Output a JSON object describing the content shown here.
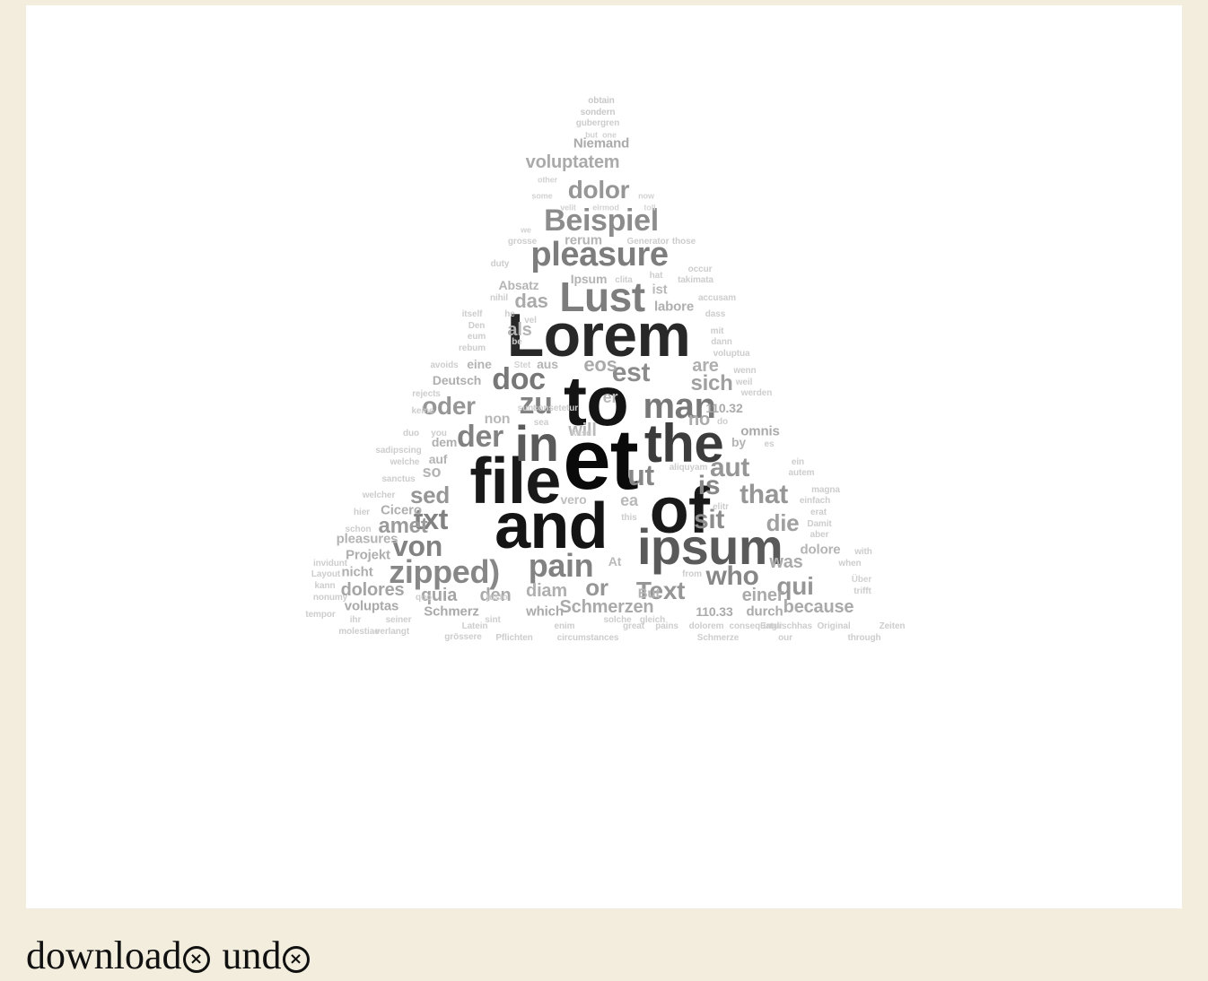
{
  "word_cloud": {
    "words": [
      {
        "text": "et",
        "size": 96,
        "tone": 10
      },
      {
        "text": "to",
        "size": 78,
        "tone": 20
      },
      {
        "text": "file",
        "size": 72,
        "tone": 25
      },
      {
        "text": "and",
        "size": 72,
        "tone": 20
      },
      {
        "text": "of",
        "size": 72,
        "tone": 25
      },
      {
        "text": "Lorem",
        "size": 68,
        "tone": 40
      },
      {
        "text": "the",
        "size": 60,
        "tone": 60
      },
      {
        "text": "in",
        "size": 56,
        "tone": 90
      },
      {
        "text": "ipsum",
        "size": 56,
        "tone": 90
      },
      {
        "text": "Lust",
        "size": 46,
        "tone": 125
      },
      {
        "text": "man",
        "size": 40,
        "tone": 120
      },
      {
        "text": "pleasure",
        "size": 38,
        "tone": 125
      },
      {
        "text": "zipped)",
        "size": 36,
        "tone": 135
      },
      {
        "text": "pain",
        "size": 36,
        "tone": 130
      },
      {
        "text": "Beispiel",
        "size": 34,
        "tone": 140
      },
      {
        "text": "doc",
        "size": 34,
        "tone": 120
      },
      {
        "text": "zu",
        "size": 34,
        "tone": 130
      },
      {
        "text": "der",
        "size": 34,
        "tone": 130
      },
      {
        "text": "ut",
        "size": 32,
        "tone": 135
      },
      {
        "text": "txt",
        "size": 32,
        "tone": 130
      },
      {
        "text": "von",
        "size": 32,
        "tone": 130
      },
      {
        "text": "est",
        "size": 30,
        "tone": 140
      },
      {
        "text": "who",
        "size": 30,
        "tone": 135
      },
      {
        "text": "aut",
        "size": 30,
        "tone": 150
      },
      {
        "text": "is",
        "size": 30,
        "tone": 135
      },
      {
        "text": "that",
        "size": 30,
        "tone": 150
      },
      {
        "text": "sit",
        "size": 30,
        "tone": 140
      },
      {
        "text": "oder",
        "size": 28,
        "tone": 150
      },
      {
        "text": "dolor",
        "size": 28,
        "tone": 150
      },
      {
        "text": "Text",
        "size": 28,
        "tone": 150
      },
      {
        "text": "qui",
        "size": 28,
        "tone": 150
      },
      {
        "text": "sed",
        "size": 26,
        "tone": 150
      },
      {
        "text": "die",
        "size": 26,
        "tone": 160
      },
      {
        "text": "or",
        "size": 26,
        "tone": 150
      },
      {
        "text": "amet",
        "size": 24,
        "tone": 155
      },
      {
        "text": "sich",
        "size": 24,
        "tone": 160
      },
      {
        "text": "das",
        "size": 22,
        "tone": 170
      },
      {
        "text": "eos",
        "size": 22,
        "tone": 170
      },
      {
        "text": "quia",
        "size": 20,
        "tone": 165
      },
      {
        "text": "den",
        "size": 20,
        "tone": 170
      },
      {
        "text": "diam",
        "size": 20,
        "tone": 175
      },
      {
        "text": "will",
        "size": 20,
        "tone": 185
      },
      {
        "text": "Schmerzen",
        "size": 20,
        "tone": 170
      },
      {
        "text": "voluptatem",
        "size": 20,
        "tone": 170
      },
      {
        "text": "are",
        "size": 20,
        "tone": 175
      },
      {
        "text": "dolores",
        "size": 20,
        "tone": 165
      },
      {
        "text": "because",
        "size": 20,
        "tone": 170
      },
      {
        "text": "als",
        "size": 20,
        "tone": 180
      },
      {
        "text": "no",
        "size": 20,
        "tone": 170
      },
      {
        "text": "was",
        "size": 20,
        "tone": 170
      },
      {
        "text": "einer",
        "size": 20,
        "tone": 170
      },
      {
        "text": "so",
        "size": 18,
        "tone": 180
      },
      {
        "text": "Niemand",
        "size": 15,
        "tone": 170
      },
      {
        "text": "rerum",
        "size": 15,
        "tone": 180
      },
      {
        "text": "Absatz",
        "size": 14,
        "tone": 180
      },
      {
        "text": "Ipsum",
        "size": 14,
        "tone": 180
      },
      {
        "text": "ist",
        "size": 15,
        "tone": 185
      },
      {
        "text": "labore",
        "size": 15,
        "tone": 175
      },
      {
        "text": "Deutsch",
        "size": 14,
        "tone": 175
      },
      {
        "text": "eine",
        "size": 14,
        "tone": 180
      },
      {
        "text": "aus",
        "size": 14,
        "tone": 180
      },
      {
        "text": "110.32",
        "size": 14,
        "tone": 170
      },
      {
        "text": "omnis",
        "size": 15,
        "tone": 170
      },
      {
        "text": "by",
        "size": 14,
        "tone": 180
      },
      {
        "text": "dem",
        "size": 14,
        "tone": 175
      },
      {
        "text": "auf",
        "size": 14,
        "tone": 180
      },
      {
        "text": "non",
        "size": 16,
        "tone": 185
      },
      {
        "text": "ea",
        "size": 18,
        "tone": 185
      },
      {
        "text": "er",
        "size": 18,
        "tone": 185
      },
      {
        "text": "vero",
        "size": 14,
        "tone": 190
      },
      {
        "text": "Cicero",
        "size": 15,
        "tone": 175
      },
      {
        "text": "Projekt",
        "size": 15,
        "tone": 175
      },
      {
        "text": "nicht",
        "size": 15,
        "tone": 175
      },
      {
        "text": "pleasures",
        "size": 15,
        "tone": 180
      },
      {
        "text": "voluptas",
        "size": 15,
        "tone": 170
      },
      {
        "text": "Schmerz",
        "size": 15,
        "tone": 170
      },
      {
        "text": "which",
        "size": 15,
        "tone": 170
      },
      {
        "text": "But",
        "size": 15,
        "tone": 180
      },
      {
        "text": "At",
        "size": 14,
        "tone": 185
      },
      {
        "text": "110.33",
        "size": 14,
        "tone": 170
      },
      {
        "text": "durch",
        "size": 15,
        "tone": 170
      },
      {
        "text": "dolore",
        "size": 15,
        "tone": 180
      },
      {
        "text": "obtain",
        "size": 10,
        "tone": 200
      },
      {
        "text": "sondern",
        "size": 10,
        "tone": 200
      },
      {
        "text": "gubergren",
        "size": 10,
        "tone": 205
      },
      {
        "text": "but",
        "size": 9,
        "tone": 210
      },
      {
        "text": "one",
        "size": 9,
        "tone": 210
      },
      {
        "text": "other",
        "size": 9,
        "tone": 210
      },
      {
        "text": "some",
        "size": 9,
        "tone": 210
      },
      {
        "text": "now",
        "size": 9,
        "tone": 210
      },
      {
        "text": "velit",
        "size": 9,
        "tone": 210
      },
      {
        "text": "eirmod",
        "size": 9,
        "tone": 210
      },
      {
        "text": "toll",
        "size": 9,
        "tone": 215
      },
      {
        "text": "we",
        "size": 9,
        "tone": 210
      },
      {
        "text": "grosse",
        "size": 10,
        "tone": 205
      },
      {
        "text": "Generator",
        "size": 10,
        "tone": 205
      },
      {
        "text": "those",
        "size": 10,
        "tone": 205
      },
      {
        "text": "duty",
        "size": 10,
        "tone": 205
      },
      {
        "text": "occur",
        "size": 10,
        "tone": 205
      },
      {
        "text": "hat",
        "size": 10,
        "tone": 205
      },
      {
        "text": "clita",
        "size": 10,
        "tone": 205
      },
      {
        "text": "takimata",
        "size": 10,
        "tone": 205
      },
      {
        "text": "nihil",
        "size": 10,
        "tone": 205
      },
      {
        "text": "accusam",
        "size": 10,
        "tone": 205
      },
      {
        "text": "itself",
        "size": 10,
        "tone": 205
      },
      {
        "text": "he",
        "size": 10,
        "tone": 205
      },
      {
        "text": "vel",
        "size": 10,
        "tone": 205
      },
      {
        "text": "dass",
        "size": 10,
        "tone": 205
      },
      {
        "text": "Den",
        "size": 10,
        "tone": 205
      },
      {
        "text": "eum",
        "size": 10,
        "tone": 205
      },
      {
        "text": "mit",
        "size": 10,
        "tone": 205
      },
      {
        "text": "dann",
        "size": 10,
        "tone": 205
      },
      {
        "text": "rebum",
        "size": 10,
        "tone": 205
      },
      {
        "text": "be",
        "size": 10,
        "tone": 205
      },
      {
        "text": "voluptua",
        "size": 10,
        "tone": 205
      },
      {
        "text": "avoids",
        "size": 10,
        "tone": 205
      },
      {
        "text": "Stet",
        "size": 10,
        "tone": 210
      },
      {
        "text": "wenn",
        "size": 10,
        "tone": 205
      },
      {
        "text": "weil",
        "size": 10,
        "tone": 205
      },
      {
        "text": "rejects",
        "size": 10,
        "tone": 205
      },
      {
        "text": "werden",
        "size": 10,
        "tone": 205
      },
      {
        "text": "keine",
        "size": 10,
        "tone": 205
      },
      {
        "text": "sunt",
        "size": 10,
        "tone": 205
      },
      {
        "text": "consetetur",
        "size": 10,
        "tone": 205
      },
      {
        "text": "sea",
        "size": 10,
        "tone": 205
      },
      {
        "text": "do",
        "size": 10,
        "tone": 205
      },
      {
        "text": "duo",
        "size": 10,
        "tone": 205
      },
      {
        "text": "you",
        "size": 10,
        "tone": 205
      },
      {
        "text": "kasd",
        "size": 10,
        "tone": 205
      },
      {
        "text": "es",
        "size": 10,
        "tone": 205
      },
      {
        "text": "sadipscing",
        "size": 10,
        "tone": 205
      },
      {
        "text": "welche",
        "size": 10,
        "tone": 205
      },
      {
        "text": "aliquyam",
        "size": 10,
        "tone": 205
      },
      {
        "text": "ein",
        "size": 10,
        "tone": 205
      },
      {
        "text": "autem",
        "size": 10,
        "tone": 205
      },
      {
        "text": "sanctus",
        "size": 10,
        "tone": 205
      },
      {
        "text": "magna",
        "size": 10,
        "tone": 205
      },
      {
        "text": "welcher",
        "size": 10,
        "tone": 205
      },
      {
        "text": "einfach",
        "size": 10,
        "tone": 205
      },
      {
        "text": "hier",
        "size": 10,
        "tone": 205
      },
      {
        "text": "this",
        "size": 10,
        "tone": 205
      },
      {
        "text": "elitr",
        "size": 10,
        "tone": 205
      },
      {
        "text": "erat",
        "size": 10,
        "tone": 205
      },
      {
        "text": "Damit",
        "size": 10,
        "tone": 205
      },
      {
        "text": "schon",
        "size": 10,
        "tone": 205
      },
      {
        "text": "aber",
        "size": 10,
        "tone": 205
      },
      {
        "text": "invidunt",
        "size": 10,
        "tone": 205
      },
      {
        "text": "with",
        "size": 10,
        "tone": 205
      },
      {
        "text": "when",
        "size": 10,
        "tone": 205
      },
      {
        "text": "Layout",
        "size": 10,
        "tone": 205
      },
      {
        "text": "from",
        "size": 10,
        "tone": 205
      },
      {
        "text": "Über",
        "size": 10,
        "tone": 210
      },
      {
        "text": "kann",
        "size": 10,
        "tone": 205
      },
      {
        "text": "trifft",
        "size": 10,
        "tone": 205
      },
      {
        "text": "nonumy",
        "size": 10,
        "tone": 205
      },
      {
        "text": "quo",
        "size": 10,
        "tone": 205
      },
      {
        "text": "justo",
        "size": 10,
        "tone": 205
      },
      {
        "text": "tempor",
        "size": 10,
        "tone": 205
      },
      {
        "text": "ihr",
        "size": 10,
        "tone": 205
      },
      {
        "text": "seiner",
        "size": 10,
        "tone": 205
      },
      {
        "text": "sint",
        "size": 10,
        "tone": 205
      },
      {
        "text": "solche",
        "size": 10,
        "tone": 205
      },
      {
        "text": "gleich",
        "size": 10,
        "tone": 205
      },
      {
        "text": "Latein",
        "size": 10,
        "tone": 205
      },
      {
        "text": "enim",
        "size": 10,
        "tone": 205
      },
      {
        "text": "dolorem",
        "size": 10,
        "tone": 205
      },
      {
        "text": "consequatur",
        "size": 10,
        "tone": 205
      },
      {
        "text": "Englischhas",
        "size": 10,
        "tone": 205
      },
      {
        "text": "Original",
        "size": 10,
        "tone": 205
      },
      {
        "text": "Zeiten",
        "size": 10,
        "tone": 205
      },
      {
        "text": "molestiae",
        "size": 10,
        "tone": 205
      },
      {
        "text": "verlangt",
        "size": 10,
        "tone": 205
      },
      {
        "text": "grössere",
        "size": 10,
        "tone": 205
      },
      {
        "text": "Pflichten",
        "size": 10,
        "tone": 205
      },
      {
        "text": "circumstances",
        "size": 10,
        "tone": 205
      },
      {
        "text": "great",
        "size": 10,
        "tone": 205
      },
      {
        "text": "pains",
        "size": 10,
        "tone": 205
      },
      {
        "text": "Schmerze",
        "size": 10,
        "tone": 205
      },
      {
        "text": "our",
        "size": 10,
        "tone": 205
      },
      {
        "text": "through",
        "size": 10,
        "tone": 205
      },
      {
        "text": "every",
        "size": 10,
        "tone": 205
      },
      {
        "text": "consequences",
        "size": 10,
        "tone": 205
      }
    ]
  },
  "footer": {
    "chips": [
      {
        "label": "download",
        "remove_glyph": "×"
      },
      {
        "label": "und",
        "remove_glyph": "×"
      }
    ]
  }
}
